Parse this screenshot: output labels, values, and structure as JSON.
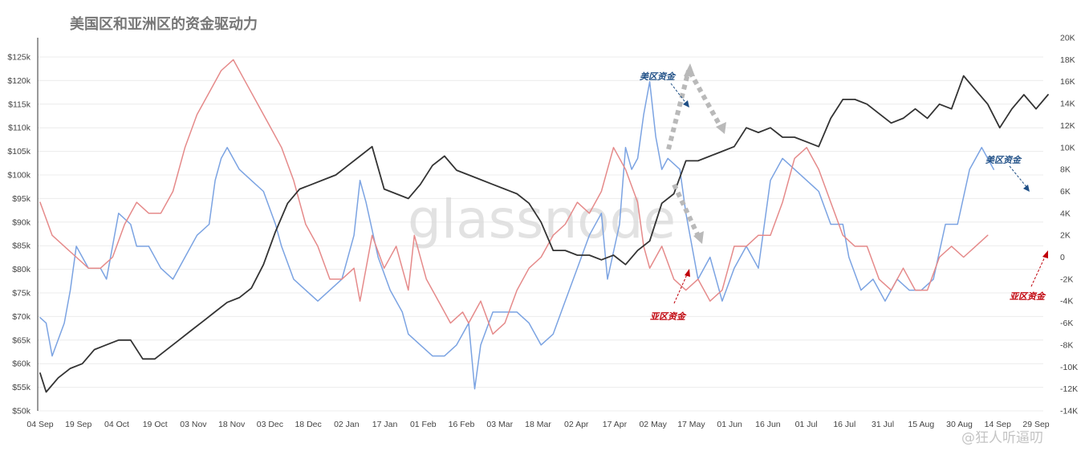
{
  "chart_data": {
    "type": "line",
    "title": "美国区和亚洲区的资金驱动力",
    "watermark": "glassnode",
    "signature": "@狂人听逼叨",
    "x_ticks": [
      "04 Sep",
      "19 Sep",
      "04 Oct",
      "19 Oct",
      "03 Nov",
      "18 Nov",
      "03 Dec",
      "18 Dec",
      "02 Jan",
      "17 Jan",
      "01 Feb",
      "16 Feb",
      "03 Mar",
      "18 Mar",
      "02 Apr",
      "17 Apr",
      "02 May",
      "17 May",
      "01 Jun",
      "16 Jun",
      "01 Jul",
      "16 Jul",
      "31 Jul",
      "15 Aug",
      "30 Aug",
      "14 Sep",
      "29 Sep"
    ],
    "y_left": {
      "min": 50,
      "max": 125,
      "ticks": [
        "$50k",
        "$55k",
        "$60k",
        "$65k",
        "$70k",
        "$75k",
        "$80k",
        "$85k",
        "$90k",
        "$95k",
        "$100k",
        "$105k",
        "$110k",
        "$115k",
        "$120k",
        "$125k"
      ]
    },
    "y_right": {
      "min": -14,
      "max": 20,
      "ticks": [
        "-14K",
        "-12K",
        "-10K",
        "-8K",
        "-6K",
        "-4K",
        "-2K",
        "0",
        "2K",
        "4K",
        "6K",
        "8K",
        "10K",
        "12K",
        "14K",
        "16K",
        "18K",
        "20K"
      ]
    },
    "series": [
      {
        "key": "price",
        "color": "#333333",
        "axis": "left",
        "points": [
          [
            0,
            58
          ],
          [
            1,
            54
          ],
          [
            3,
            57
          ],
          [
            5,
            59
          ],
          [
            7,
            60
          ],
          [
            9,
            63
          ],
          [
            11,
            64
          ],
          [
            13,
            65
          ],
          [
            15,
            65
          ],
          [
            17,
            61
          ],
          [
            19,
            61
          ],
          [
            21,
            63
          ],
          [
            23,
            65
          ],
          [
            25,
            67
          ],
          [
            27,
            69
          ],
          [
            29,
            71
          ],
          [
            31,
            73
          ],
          [
            33,
            74
          ],
          [
            35,
            76
          ],
          [
            37,
            81
          ],
          [
            39,
            88
          ],
          [
            41,
            94
          ],
          [
            43,
            97
          ],
          [
            45,
            98
          ],
          [
            47,
            99
          ],
          [
            49,
            100
          ],
          [
            51,
            102
          ],
          [
            53,
            104
          ],
          [
            55,
            106
          ],
          [
            57,
            97
          ],
          [
            59,
            96
          ],
          [
            61,
            95
          ],
          [
            63,
            98
          ],
          [
            65,
            102
          ],
          [
            67,
            104
          ],
          [
            69,
            101
          ],
          [
            71,
            100
          ],
          [
            73,
            99
          ],
          [
            75,
            98
          ],
          [
            77,
            97
          ],
          [
            79,
            96
          ],
          [
            81,
            94
          ],
          [
            83,
            90
          ],
          [
            85,
            84
          ],
          [
            87,
            84
          ],
          [
            89,
            83
          ],
          [
            91,
            83
          ],
          [
            93,
            82
          ],
          [
            95,
            83
          ],
          [
            97,
            81
          ],
          [
            99,
            84
          ],
          [
            101,
            86
          ],
          [
            103,
            94
          ],
          [
            105,
            96
          ],
          [
            107,
            103
          ],
          [
            109,
            103
          ],
          [
            111,
            104
          ],
          [
            113,
            105
          ],
          [
            115,
            106
          ],
          [
            117,
            110
          ],
          [
            119,
            109
          ],
          [
            121,
            110
          ],
          [
            123,
            108
          ],
          [
            125,
            108
          ],
          [
            127,
            107
          ],
          [
            129,
            106
          ],
          [
            131,
            112
          ],
          [
            133,
            116
          ],
          [
            135,
            116
          ],
          [
            137,
            115
          ],
          [
            139,
            113
          ],
          [
            141,
            111
          ],
          [
            143,
            112
          ],
          [
            145,
            114
          ],
          [
            147,
            112
          ],
          [
            149,
            115
          ],
          [
            151,
            114
          ],
          [
            153,
            121
          ],
          [
            155,
            118
          ],
          [
            157,
            115
          ],
          [
            159,
            110
          ],
          [
            161,
            114
          ],
          [
            163,
            117
          ],
          [
            165,
            114
          ],
          [
            167,
            117
          ]
        ]
      },
      {
        "key": "us_flow",
        "color": "#7ba3e2",
        "axis": "right",
        "points": [
          [
            0,
            -5.5
          ],
          [
            1,
            -6
          ],
          [
            2,
            -9
          ],
          [
            4,
            -6
          ],
          [
            5,
            -3
          ],
          [
            6,
            1
          ],
          [
            8,
            -1
          ],
          [
            10,
            -1
          ],
          [
            11,
            -2
          ],
          [
            13,
            4
          ],
          [
            15,
            3
          ],
          [
            16,
            1
          ],
          [
            18,
            1
          ],
          [
            20,
            -1
          ],
          [
            22,
            -2
          ],
          [
            24,
            0
          ],
          [
            26,
            2
          ],
          [
            28,
            3
          ],
          [
            29,
            7
          ],
          [
            30,
            9
          ],
          [
            31,
            10
          ],
          [
            33,
            8
          ],
          [
            35,
            7
          ],
          [
            37,
            6
          ],
          [
            39,
            3
          ],
          [
            40,
            1
          ],
          [
            42,
            -2
          ],
          [
            44,
            -3
          ],
          [
            46,
            -4
          ],
          [
            48,
            -3
          ],
          [
            50,
            -2
          ],
          [
            52,
            2
          ],
          [
            53,
            7
          ],
          [
            54,
            5
          ],
          [
            56,
            0
          ],
          [
            58,
            -3
          ],
          [
            60,
            -5
          ],
          [
            61,
            -7
          ],
          [
            63,
            -8
          ],
          [
            65,
            -9
          ],
          [
            67,
            -9
          ],
          [
            69,
            -8
          ],
          [
            71,
            -6
          ],
          [
            72,
            -12
          ],
          [
            73,
            -8
          ],
          [
            75,
            -5
          ],
          [
            77,
            -5
          ],
          [
            79,
            -5
          ],
          [
            81,
            -6
          ],
          [
            83,
            -8
          ],
          [
            85,
            -7
          ],
          [
            87,
            -4
          ],
          [
            89,
            -1
          ],
          [
            91,
            2
          ],
          [
            93,
            4
          ],
          [
            94,
            -2
          ],
          [
            96,
            3
          ],
          [
            97,
            10
          ],
          [
            98,
            8
          ],
          [
            99,
            9
          ],
          [
            100,
            13
          ],
          [
            101,
            16
          ],
          [
            102,
            11
          ],
          [
            103,
            8
          ],
          [
            104,
            9
          ],
          [
            106,
            8
          ],
          [
            107,
            4
          ],
          [
            109,
            -2
          ],
          [
            111,
            0
          ],
          [
            113,
            -4
          ],
          [
            115,
            -1
          ],
          [
            117,
            1
          ],
          [
            119,
            -1
          ],
          [
            121,
            7
          ],
          [
            123,
            9
          ],
          [
            125,
            8
          ],
          [
            127,
            7
          ],
          [
            129,
            6
          ],
          [
            131,
            3
          ],
          [
            133,
            3
          ],
          [
            134,
            0
          ],
          [
            136,
            -3
          ],
          [
            138,
            -2
          ],
          [
            140,
            -4
          ],
          [
            142,
            -2
          ],
          [
            144,
            -3
          ],
          [
            146,
            -3
          ],
          [
            148,
            -2
          ],
          [
            150,
            3
          ],
          [
            152,
            3
          ],
          [
            154,
            8
          ],
          [
            156,
            10
          ],
          [
            158,
            8
          ]
        ]
      },
      {
        "key": "asia_flow",
        "color": "#e58a8a",
        "axis": "right",
        "points": [
          [
            0,
            5
          ],
          [
            2,
            2
          ],
          [
            4,
            1
          ],
          [
            6,
            0
          ],
          [
            8,
            -1
          ],
          [
            10,
            -1
          ],
          [
            12,
            0
          ],
          [
            14,
            3
          ],
          [
            16,
            5
          ],
          [
            18,
            4
          ],
          [
            20,
            4
          ],
          [
            22,
            6
          ],
          [
            24,
            10
          ],
          [
            26,
            13
          ],
          [
            28,
            15
          ],
          [
            30,
            17
          ],
          [
            32,
            18
          ],
          [
            34,
            16
          ],
          [
            36,
            14
          ],
          [
            38,
            12
          ],
          [
            40,
            10
          ],
          [
            42,
            7
          ],
          [
            44,
            3
          ],
          [
            46,
            1
          ],
          [
            48,
            -2
          ],
          [
            50,
            -2
          ],
          [
            52,
            -1
          ],
          [
            53,
            -4
          ],
          [
            55,
            2
          ],
          [
            57,
            -1
          ],
          [
            59,
            1
          ],
          [
            61,
            -3
          ],
          [
            62,
            2
          ],
          [
            64,
            -2
          ],
          [
            66,
            -4
          ],
          [
            68,
            -6
          ],
          [
            70,
            -5
          ],
          [
            71,
            -6
          ],
          [
            73,
            -4
          ],
          [
            75,
            -7
          ],
          [
            77,
            -6
          ],
          [
            79,
            -3
          ],
          [
            81,
            -1
          ],
          [
            83,
            0
          ],
          [
            85,
            2
          ],
          [
            87,
            3
          ],
          [
            89,
            5
          ],
          [
            91,
            4
          ],
          [
            93,
            6
          ],
          [
            95,
            10
          ],
          [
            97,
            8
          ],
          [
            99,
            5
          ],
          [
            100,
            1
          ],
          [
            101,
            -1
          ],
          [
            103,
            1
          ],
          [
            105,
            -2
          ],
          [
            107,
            -3
          ],
          [
            109,
            -2
          ],
          [
            111,
            -4
          ],
          [
            113,
            -3
          ],
          [
            115,
            1
          ],
          [
            117,
            1
          ],
          [
            119,
            2
          ],
          [
            121,
            2
          ],
          [
            123,
            5
          ],
          [
            125,
            9
          ],
          [
            127,
            10
          ],
          [
            129,
            8
          ],
          [
            131,
            5
          ],
          [
            133,
            2
          ],
          [
            135,
            1
          ],
          [
            137,
            1
          ],
          [
            139,
            -2
          ],
          [
            141,
            -3
          ],
          [
            143,
            -1
          ],
          [
            145,
            -3
          ],
          [
            147,
            -3
          ],
          [
            149,
            0
          ],
          [
            151,
            1
          ],
          [
            153,
            0
          ],
          [
            155,
            1
          ],
          [
            157,
            2
          ]
        ]
      }
    ],
    "annotations": [
      {
        "text": "美区资金",
        "color": "#1f4f86"
      },
      {
        "text": "亚区资金",
        "color": "#c0000a"
      },
      {
        "text": "美区资金",
        "color": "#1f4f86"
      },
      {
        "text": "亚区资金",
        "color": "#c0000a"
      }
    ]
  }
}
